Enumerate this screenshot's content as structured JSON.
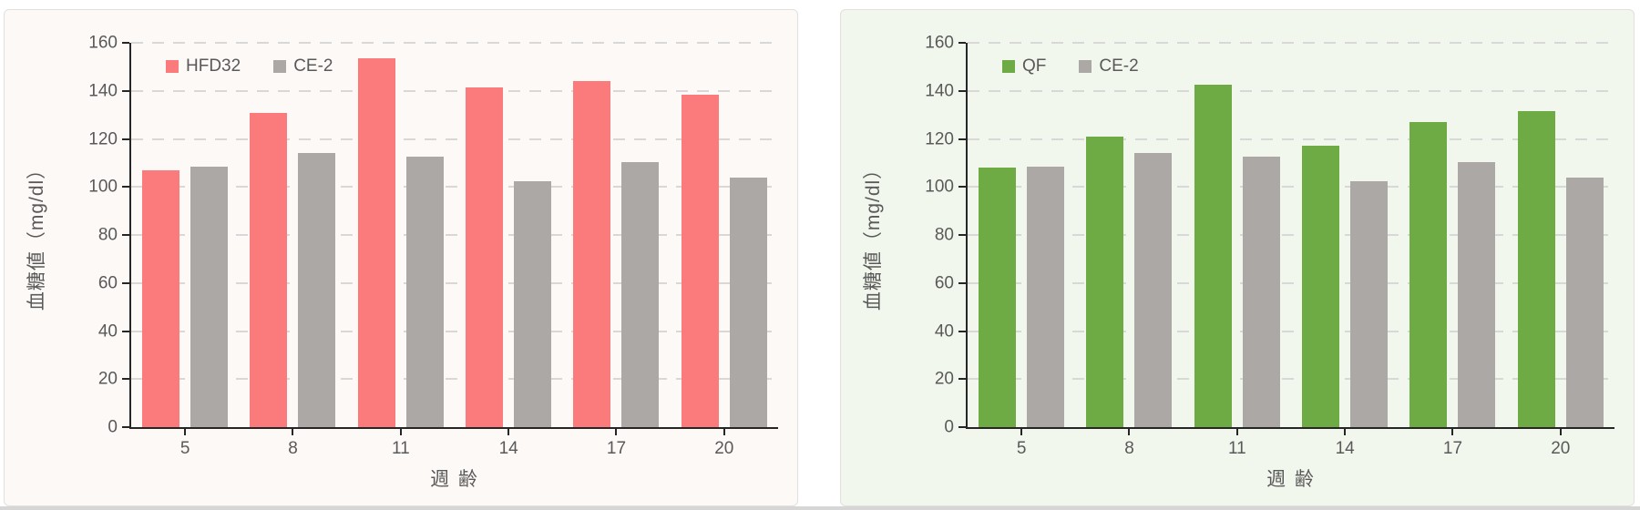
{
  "page": {
    "background": "#ffffff",
    "bottom_strip_color": "#d6d6d6",
    "panel_border_color": "#e2dfde"
  },
  "theme": {
    "axis_color": "#262626",
    "gridline_color": "#d8d8d8",
    "label_text_color": "#595959"
  },
  "chart_data": [
    {
      "type": "bar",
      "title": "",
      "panel_bg": "#fdf9f7",
      "categories": [
        "5",
        "8",
        "11",
        "14",
        "17",
        "20"
      ],
      "series": [
        {
          "name": "HFD32",
          "color": "#fb7b7d",
          "values": [
            107,
            131,
            153.5,
            141.5,
            144,
            138.5
          ]
        },
        {
          "name": "CE-2",
          "color": "#aca8a6",
          "values": [
            108.5,
            114,
            112.5,
            102.5,
            110.5,
            104
          ]
        }
      ],
      "xlabel": "週 齢",
      "ylabel": "血糖値（mg/dl）",
      "ylim": [
        0,
        160
      ],
      "ytick_step": 20,
      "grid": "horizontal-dashed",
      "legend_position": "top-left-inside"
    },
    {
      "type": "bar",
      "title": "",
      "panel_bg": "#f2f7ee",
      "categories": [
        "5",
        "8",
        "11",
        "14",
        "17",
        "20"
      ],
      "series": [
        {
          "name": "QF",
          "color": "#6eab45",
          "values": [
            108,
            121,
            142.5,
            117,
            127,
            131.5
          ]
        },
        {
          "name": "CE-2",
          "color": "#aca8a6",
          "values": [
            108.5,
            114,
            112.5,
            102.5,
            110.5,
            104
          ]
        }
      ],
      "xlabel": "週 齢",
      "ylabel": "血糖値（mg/dl）",
      "ylim": [
        0,
        160
      ],
      "ytick_step": 20,
      "grid": "horizontal-dashed",
      "legend_position": "top-left-inside"
    }
  ]
}
